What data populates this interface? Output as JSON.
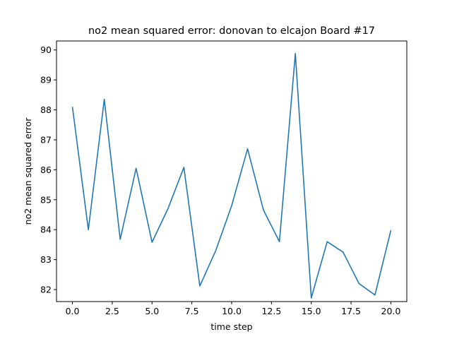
{
  "chart_data": {
    "type": "line",
    "title": "no2 mean squared error: donovan to elcajon Board #17",
    "xlabel": "time step",
    "ylabel": "no2 mean squared error",
    "xlim": [
      -1.0,
      21.0
    ],
    "ylim": [
      81.6,
      90.3
    ],
    "xticks": [
      0.0,
      2.5,
      5.0,
      7.5,
      10.0,
      12.5,
      15.0,
      17.5,
      20.0
    ],
    "xtick_labels": [
      "0.0",
      "2.5",
      "5.0",
      "7.5",
      "10.0",
      "12.5",
      "15.0",
      "17.5",
      "20.0"
    ],
    "yticks": [
      82,
      83,
      84,
      85,
      86,
      87,
      88,
      89,
      90
    ],
    "ytick_labels": [
      "82",
      "83",
      "84",
      "85",
      "86",
      "87",
      "88",
      "89",
      "90"
    ],
    "grid": false,
    "series": [
      {
        "color": "#1f77b4",
        "x": [
          0,
          1,
          2,
          3,
          4,
          5,
          6,
          7,
          8,
          9,
          10,
          11,
          12,
          13,
          14,
          15,
          16,
          17,
          18,
          19,
          20
        ],
        "y": [
          88.1,
          84.0,
          88.35,
          83.68,
          86.05,
          83.58,
          84.7,
          86.08,
          82.12,
          83.3,
          84.8,
          86.7,
          84.65,
          83.6,
          89.88,
          81.72,
          83.6,
          83.25,
          82.2,
          81.82,
          83.98
        ]
      }
    ]
  }
}
